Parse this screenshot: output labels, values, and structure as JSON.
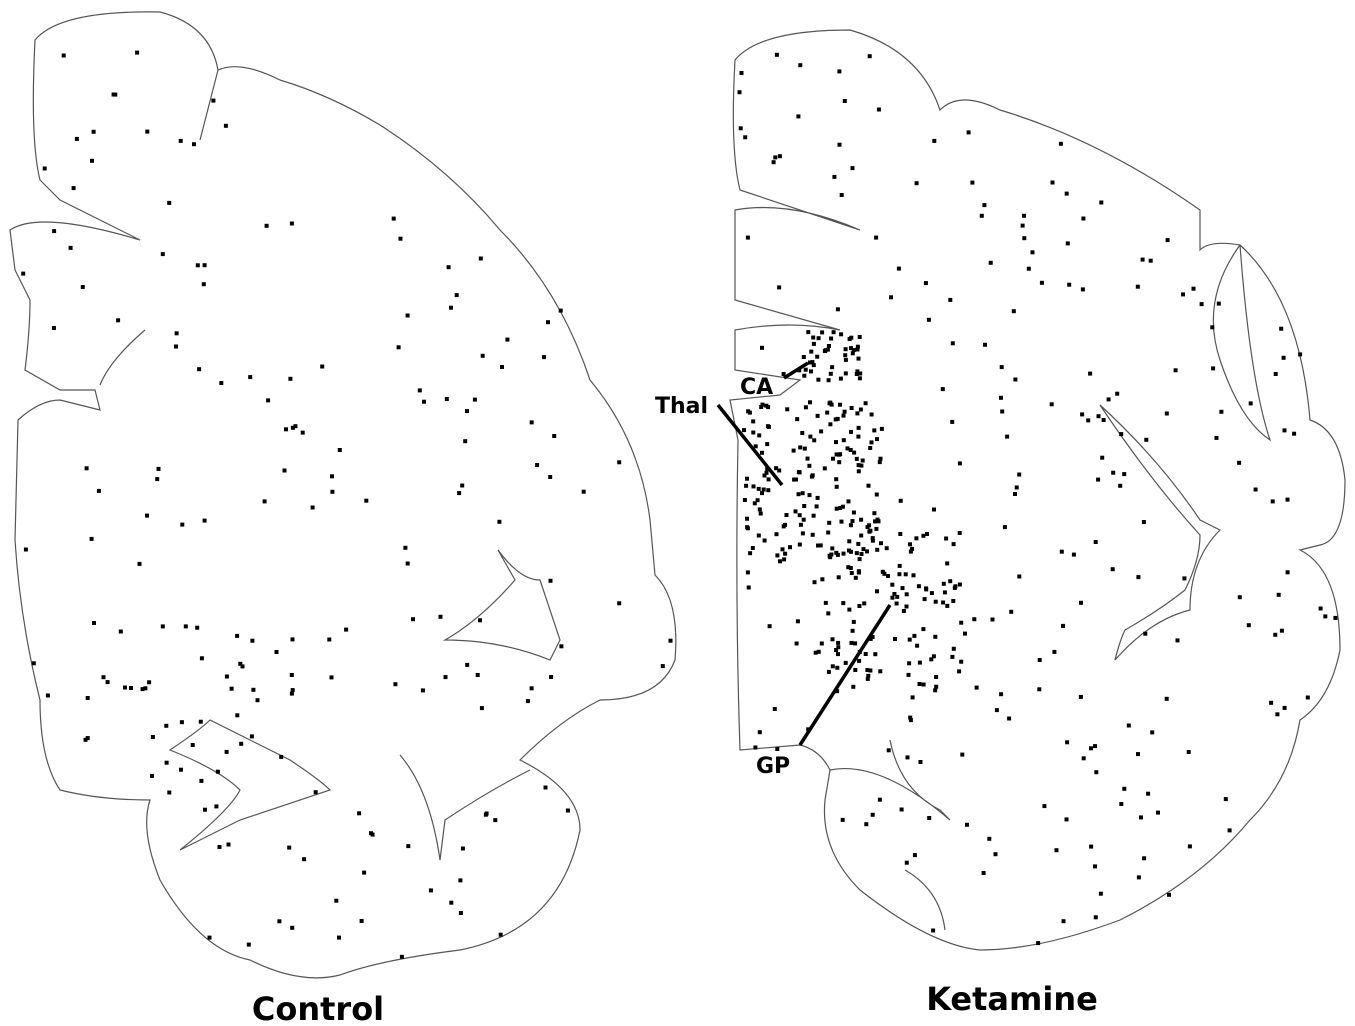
{
  "panels": [
    {
      "label": "Control"
    },
    {
      "label": "Ketamine",
      "annotations": [
        {
          "label": "CA"
        },
        {
          "label": "Thal"
        },
        {
          "label": "GP"
        }
      ]
    }
  ]
}
